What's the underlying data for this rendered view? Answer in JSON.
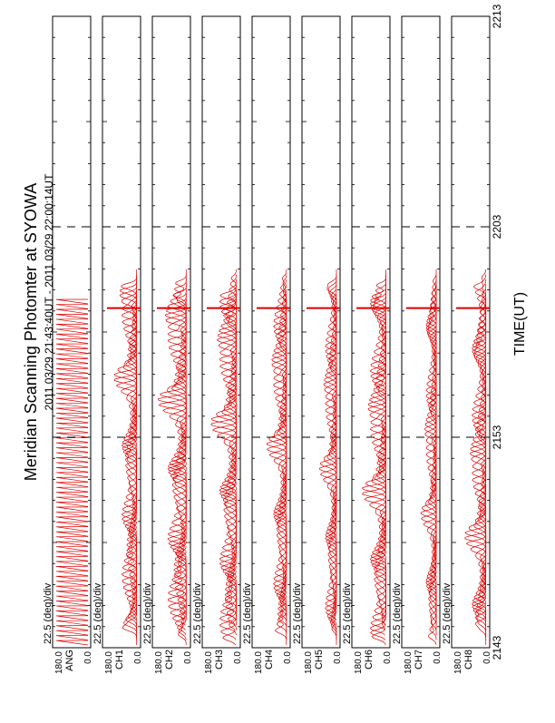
{
  "chart_data": {
    "type": "line",
    "title": "Meridian Scanning Photomter at SYOWA",
    "subtitle": "2011 03/29 21:43:40UT - 2011 03/29 22:00:14UT",
    "xlabel": "TIME(UT)",
    "x_ticks": [
      "2143",
      "2153",
      "2203",
      "2213"
    ],
    "time_range_min": [
      0,
      30
    ],
    "data_end_min": 16.57,
    "scale_label": "22.5 (deg)/div",
    "y_tick_top": "180.0",
    "y_tick_bottom": "0.0",
    "trace_color": "#dd0000",
    "panels": [
      {
        "name": "ANG",
        "kind": "angle"
      },
      {
        "name": "CH1",
        "kind": "intensity",
        "peak": 0.8
      },
      {
        "name": "CH2",
        "kind": "intensity",
        "peak": 1.0
      },
      {
        "name": "CH3",
        "kind": "intensity",
        "peak": 0.9
      },
      {
        "name": "CH4",
        "kind": "intensity",
        "peak": 0.7
      },
      {
        "name": "CH5",
        "kind": "intensity",
        "peak": 0.6
      },
      {
        "name": "CH6",
        "kind": "intensity",
        "peak": 0.85
      },
      {
        "name": "CH7",
        "kind": "intensity",
        "peak": 0.55
      },
      {
        "name": "CH8",
        "kind": "intensity",
        "peak": 0.75
      }
    ]
  }
}
